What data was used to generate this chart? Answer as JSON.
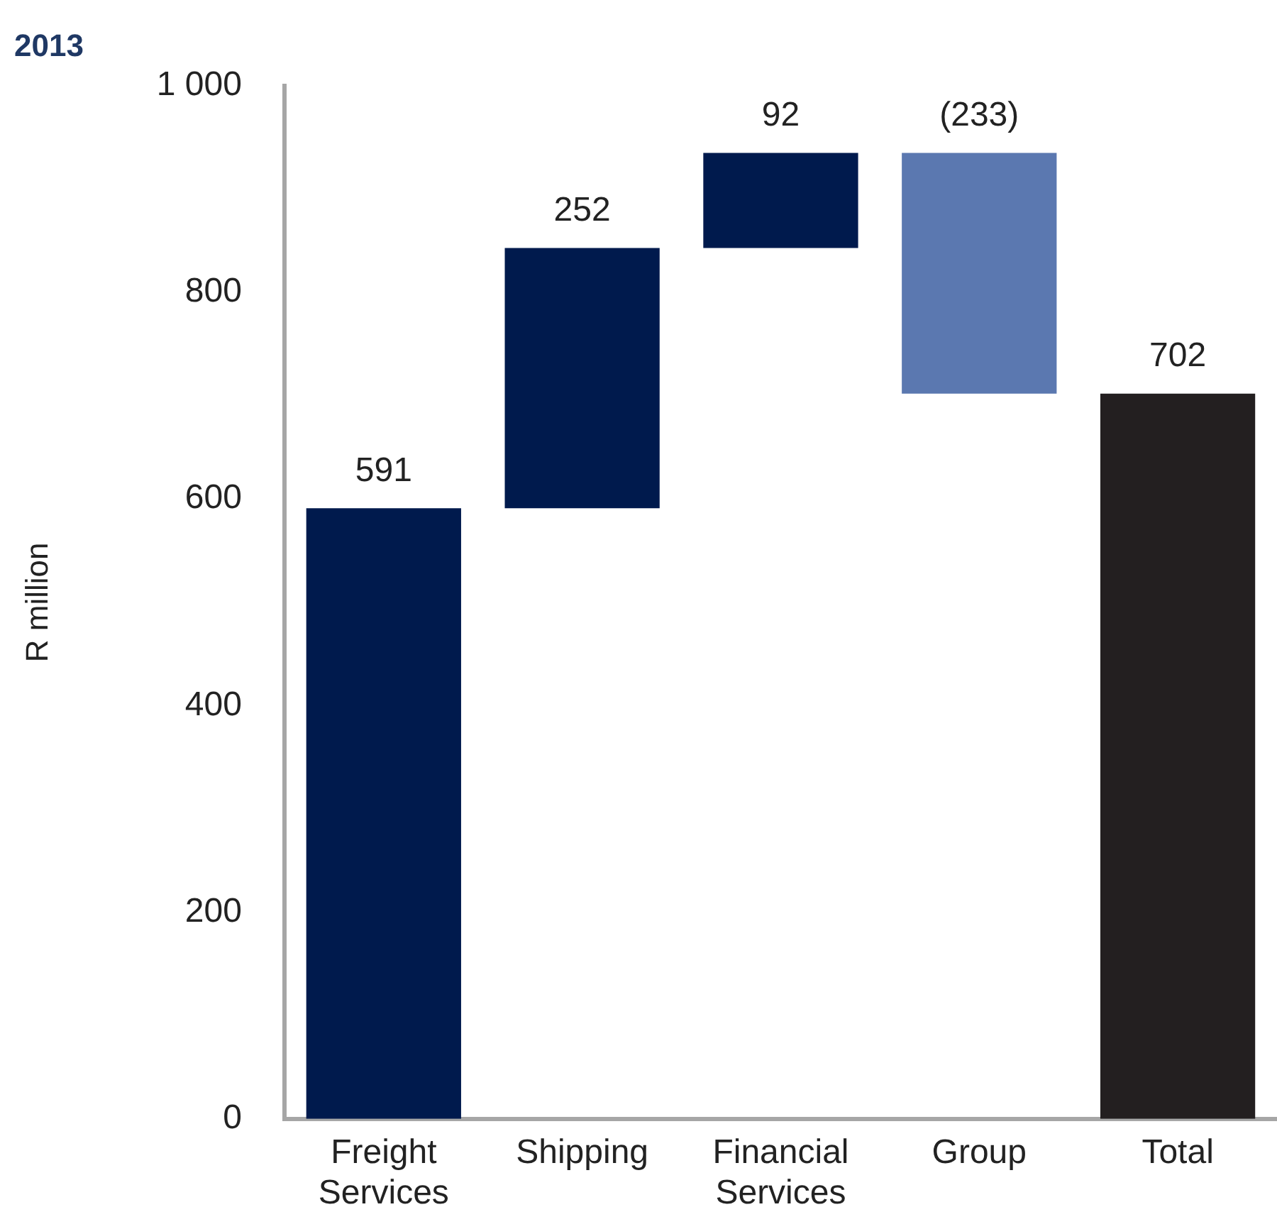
{
  "chart_data": {
    "type": "bar",
    "title": "2013",
    "ylabel": "R million",
    "categories": [
      "Freight Services",
      "Shipping",
      "Financial Services",
      "Group",
      "Total"
    ],
    "values": [
      591,
      252,
      92,
      -233,
      702
    ],
    "base": [
      0,
      591,
      843,
      935,
      0
    ],
    "colors": [
      "#001a4d",
      "#001a4d",
      "#001a4d",
      "#5b78b0",
      "#231f20"
    ],
    "value_labels": [
      "591",
      "252",
      "92",
      "(233)",
      "702"
    ],
    "ylim": [
      0,
      1000
    ],
    "yticks": [
      0,
      200,
      400,
      600,
      800,
      {
        "value": 1000,
        "label": "1 000"
      }
    ],
    "grid": false,
    "legend": false
  }
}
